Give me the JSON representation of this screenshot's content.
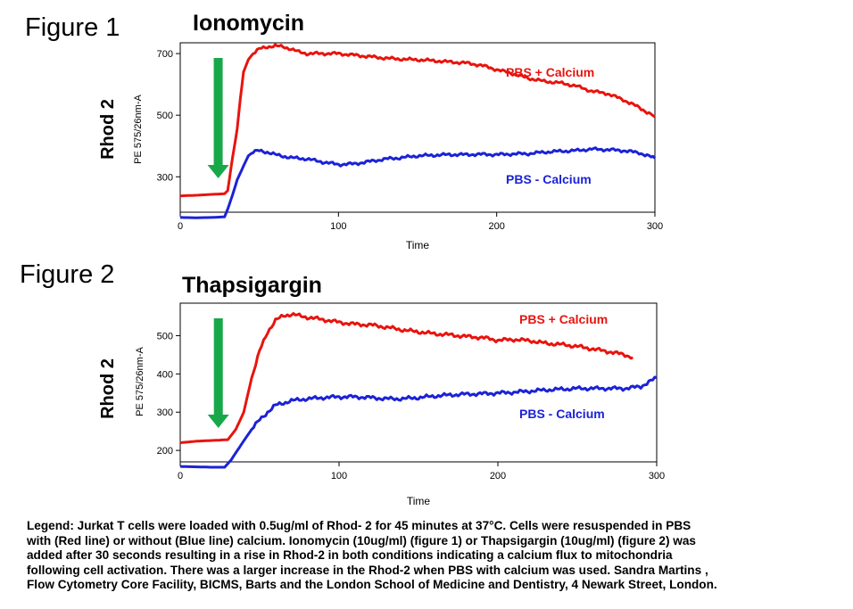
{
  "chart_data": [
    {
      "type": "line",
      "figure_label": "Figure 1",
      "title": "Ionomycin",
      "side_label": "Rhod 2",
      "ylabel": "PE 575/26nm-A",
      "xlabel": "Time",
      "xlim": [
        0,
        300
      ],
      "ylim": [
        185,
        735
      ],
      "xticks": [
        0,
        100,
        200,
        300
      ],
      "yticks": [
        300,
        500,
        700
      ],
      "arrow_x": 24,
      "grid": false,
      "colors": {
        "arrow": "#18a84a"
      },
      "series": [
        {
          "name": "PBS + Calcium",
          "color": "#e8140e",
          "x": [
            0,
            10,
            20,
            28,
            30,
            33,
            36,
            38,
            40,
            43,
            46,
            50,
            55,
            60,
            65,
            70,
            75,
            80,
            90,
            100,
            110,
            120,
            130,
            140,
            150,
            160,
            170,
            180,
            190,
            200,
            210,
            220,
            230,
            240,
            250,
            260,
            270,
            280,
            290,
            300
          ],
          "y": [
            238,
            240,
            243,
            245,
            255,
            360,
            455,
            555,
            640,
            680,
            700,
            715,
            722,
            725,
            722,
            715,
            705,
            700,
            700,
            700,
            695,
            690,
            685,
            682,
            680,
            677,
            673,
            670,
            662,
            648,
            635,
            620,
            610,
            605,
            595,
            578,
            570,
            550,
            525,
            495
          ]
        },
        {
          "name": "PBS - Calcium",
          "color": "#1c22d6",
          "x": [
            0,
            10,
            20,
            28,
            30,
            33,
            36,
            40,
            43,
            46,
            50,
            55,
            60,
            70,
            80,
            90,
            100,
            110,
            120,
            130,
            140,
            150,
            160,
            170,
            180,
            190,
            200,
            210,
            220,
            230,
            240,
            250,
            260,
            270,
            280,
            290,
            300
          ],
          "y": [
            168,
            167,
            168,
            170,
            195,
            240,
            290,
            335,
            368,
            380,
            385,
            380,
            372,
            362,
            358,
            348,
            340,
            342,
            350,
            358,
            362,
            368,
            370,
            372,
            372,
            373,
            372,
            374,
            375,
            380,
            383,
            385,
            390,
            388,
            385,
            378,
            360
          ]
        }
      ]
    },
    {
      "type": "line",
      "figure_label": "Figure 2",
      "title": "Thapsigargin",
      "side_label": "Rhod 2",
      "ylabel": "PE 575/26nm-A",
      "xlabel": "Time",
      "xlim": [
        0,
        300
      ],
      "ylim": [
        170,
        585
      ],
      "xticks": [
        0,
        100,
        200,
        300
      ],
      "yticks": [
        200,
        300,
        400,
        500
      ],
      "arrow_x": 24,
      "grid": false,
      "colors": {
        "arrow": "#18a84a"
      },
      "series": [
        {
          "name": "PBS + Calcium",
          "color": "#e8140e",
          "x": [
            0,
            10,
            20,
            30,
            35,
            40,
            45,
            50,
            55,
            60,
            65,
            70,
            80,
            90,
            100,
            110,
            120,
            130,
            140,
            150,
            160,
            170,
            180,
            190,
            200,
            210,
            220,
            230,
            240,
            250,
            260,
            270,
            280,
            285
          ],
          "y": [
            220,
            224,
            226,
            228,
            255,
            300,
            390,
            460,
            510,
            540,
            552,
            556,
            548,
            542,
            535,
            530,
            528,
            522,
            515,
            510,
            505,
            502,
            498,
            495,
            488,
            490,
            487,
            480,
            477,
            472,
            465,
            458,
            450,
            443
          ]
        },
        {
          "name": "PBS - Calcium",
          "color": "#1c22d6",
          "x": [
            0,
            10,
            20,
            28,
            32,
            36,
            40,
            45,
            50,
            55,
            60,
            70,
            80,
            90,
            100,
            110,
            120,
            130,
            140,
            150,
            160,
            170,
            180,
            190,
            200,
            210,
            220,
            230,
            240,
            250,
            260,
            270,
            280,
            290,
            300
          ],
          "y": [
            158,
            157,
            156,
            156,
            175,
            200,
            225,
            255,
            280,
            300,
            318,
            330,
            335,
            338,
            340,
            340,
            338,
            335,
            335,
            338,
            342,
            345,
            347,
            348,
            350,
            352,
            355,
            358,
            360,
            362,
            362,
            362,
            362,
            367,
            390
          ]
        }
      ]
    }
  ],
  "legend_text": "Legend: Jurkat T cells were loaded with 0.5ug/ml of Rhod- 2 for 45 minutes at 37°C. Cells were resuspended in PBS\nwith (Red line) or without (Blue line) calcium. Ionomycin (10ug/ml) (figure 1) or Thapsigargin (10ug/ml) (figure 2) was\nadded after 30 seconds resulting in a rise in Rhod-2 in both conditions indicating  a calcium flux to mitochondria\nfollowing cell activation.  There was a larger increase in the Rhod-2 when PBS with calcium was used. Sandra Martins ,\nFlow Cytometry Core Facility, BICMS, Barts and the London School of Medicine and Dentistry, 4 Newark Street, London."
}
